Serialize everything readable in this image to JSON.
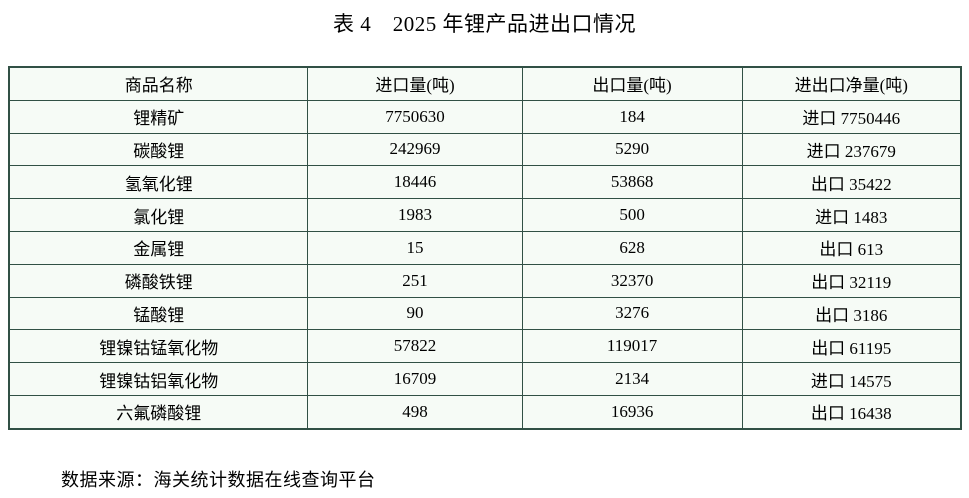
{
  "title": "表 4　2025 年锂产品进出口情况",
  "table": {
    "headers": [
      "商品名称",
      "进口量(吨)",
      "出口量(吨)",
      "进出口净量(吨)"
    ],
    "rows": [
      [
        "锂精矿",
        "7750630",
        "184",
        "进口 7750446"
      ],
      [
        "碳酸锂",
        "242969",
        "5290",
        "进口 237679"
      ],
      [
        "氢氧化锂",
        "18446",
        "53868",
        "出口 35422"
      ],
      [
        "氯化锂",
        "1983",
        "500",
        "进口 1483"
      ],
      [
        "金属锂",
        "15",
        "628",
        "出口 613"
      ],
      [
        "磷酸铁锂",
        "251",
        "32370",
        "出口 32119"
      ],
      [
        "锰酸锂",
        "90",
        "3276",
        "出口 3186"
      ],
      [
        "锂镍钴锰氧化物",
        "57822",
        "119017",
        "出口 61195"
      ],
      [
        "锂镍钴铝氧化物",
        "16709",
        "2134",
        "进口 14575"
      ],
      [
        "六氟磷酸锂",
        "498",
        "16936",
        "出口 16438"
      ]
    ]
  },
  "footer": {
    "source": "数据来源：海关统计数据在线查询平台"
  },
  "colors": {
    "border": "#315045",
    "cell_background": "#f6fbf6",
    "text": "#000000"
  }
}
